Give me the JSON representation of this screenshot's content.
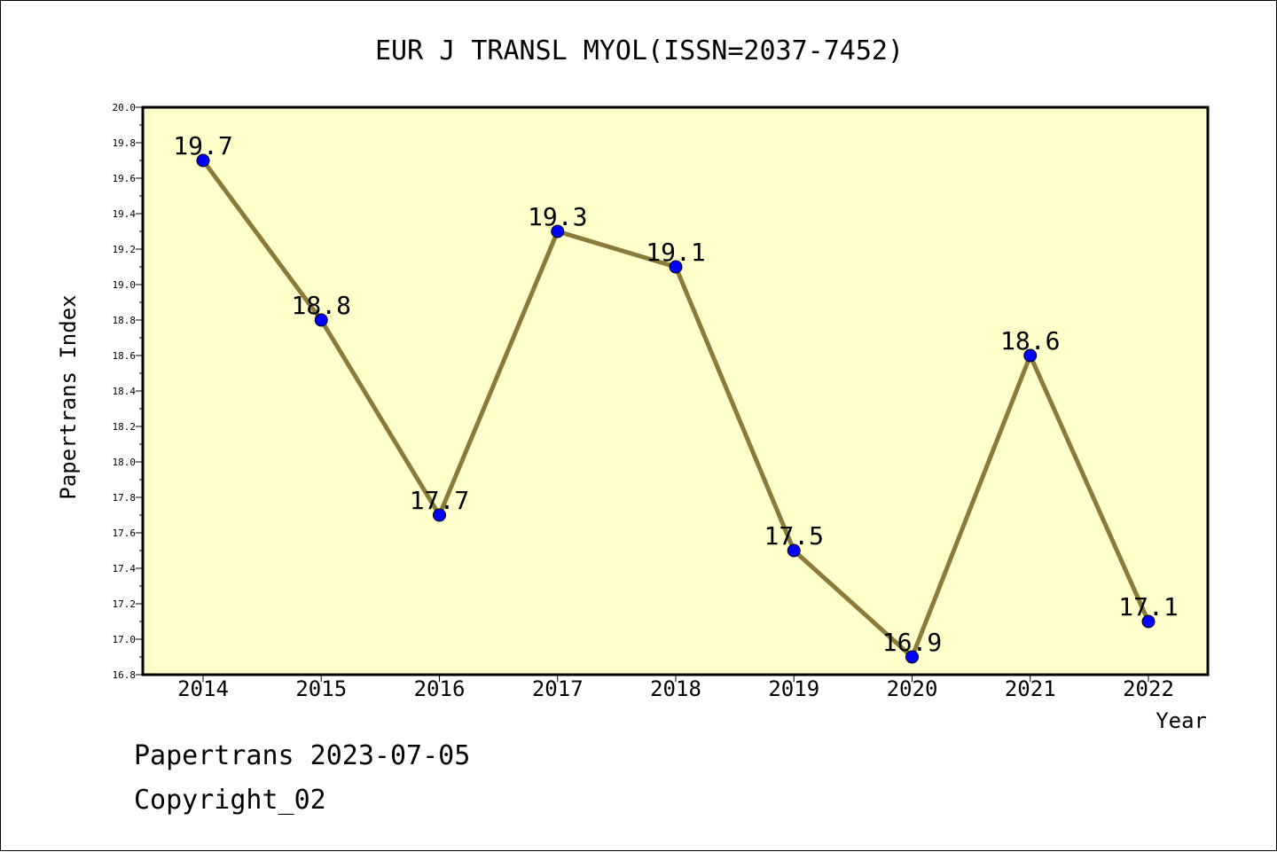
{
  "chart_data": {
    "type": "line",
    "title": "EUR J TRANSL MYOL(ISSN=2037-7452)",
    "xlabel": "Year",
    "ylabel": "Papertrans Index",
    "categories": [
      "2014",
      "2015",
      "2016",
      "2017",
      "2018",
      "2019",
      "2020",
      "2021",
      "2022"
    ],
    "series": [
      {
        "values": [
          19.7,
          18.8,
          17.7,
          19.3,
          19.1,
          17.5,
          16.9,
          18.6,
          17.1
        ],
        "labels": [
          "19.7",
          "18.8",
          "17.7",
          "19.3",
          "19.1",
          "17.5",
          "16.9",
          "18.6",
          "17.1"
        ]
      }
    ],
    "ylim": [
      16.8,
      20.0
    ],
    "yticks": [
      "16.8",
      "17.0",
      "17.2",
      "17.4",
      "17.6",
      "17.8",
      "18.0",
      "18.2",
      "18.4",
      "18.6",
      "18.8",
      "19.0",
      "19.2",
      "19.4",
      "19.6",
      "19.8",
      "20.0"
    ],
    "grid": false,
    "legend": "none",
    "colors": {
      "plot_background": "#ffffcc",
      "line": "#8b7a3a",
      "marker": "#0000ff",
      "axis": "#000000"
    }
  },
  "footer": {
    "line1": "Papertrans 2023-07-05",
    "line2": "Copyright_02"
  }
}
